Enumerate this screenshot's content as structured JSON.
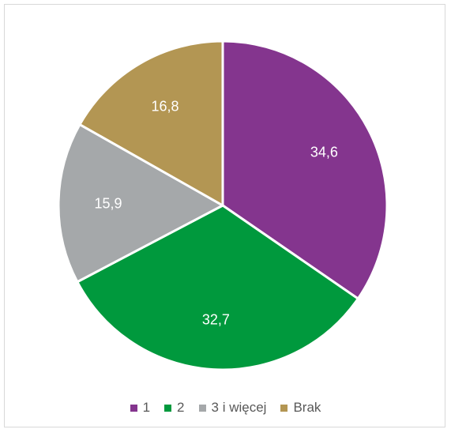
{
  "chart_data": {
    "type": "pie",
    "categories": [
      "1",
      "2",
      "3 i więcej",
      "Brak"
    ],
    "values": [
      34.6,
      32.7,
      15.9,
      16.8
    ],
    "value_labels": [
      "34,6",
      "32,7",
      "15,9",
      "16,8"
    ],
    "colors": [
      "#84358E",
      "#00993D",
      "#A5A8AA",
      "#B39653"
    ],
    "start_angle_deg": 0,
    "direction": "clockwise",
    "legend_position": "bottom",
    "title": ""
  },
  "legend": {
    "items": [
      {
        "label": "1",
        "color": "#84358E"
      },
      {
        "label": "2",
        "color": "#00993D"
      },
      {
        "label": "3 i więcej",
        "color": "#A5A8AA"
      },
      {
        "label": "Brak",
        "color": "#B39653"
      }
    ]
  }
}
